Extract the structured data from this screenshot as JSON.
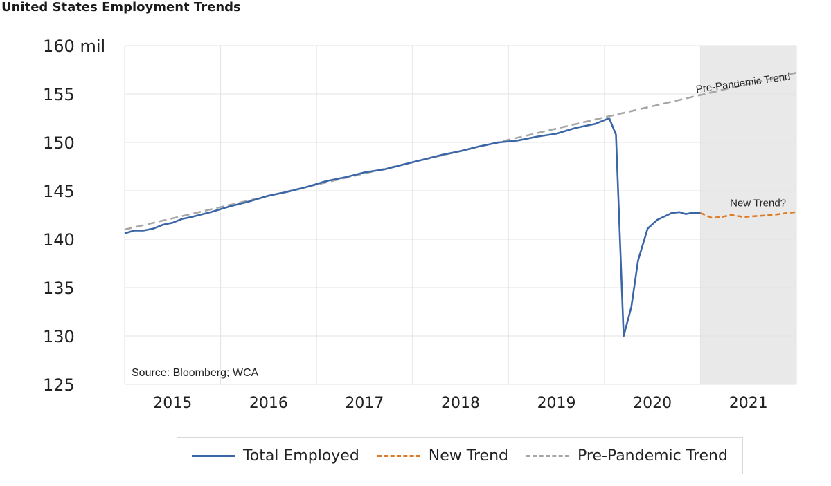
{
  "page": {
    "title": "United States Employment Trends"
  },
  "colors": {
    "total_employed": "#3a65a6",
    "new_trend": "#e07b25",
    "pre_pandemic_trend": "#a6a6a6",
    "forecast_shade": "#e9e9e9",
    "grid": "#e3e3e3"
  },
  "chart_data": {
    "type": "line",
    "title": "United States Employment Trends",
    "xlabel": "",
    "ylabel": "",
    "x_tick_labels": [
      "2015",
      "2016",
      "2017",
      "2018",
      "2019",
      "2020",
      "2021"
    ],
    "y_tick_labels": [
      "160 mil",
      "155",
      "150",
      "145",
      "140",
      "135",
      "130",
      "125"
    ],
    "y_ticks": [
      160,
      155,
      150,
      145,
      140,
      135,
      130,
      125
    ],
    "ylim": [
      125,
      160
    ],
    "xlim": [
      2014.6,
      2021.6
    ],
    "grid": true,
    "shaded_region": {
      "x_start": 2020.6,
      "x_end": 2021.6
    },
    "source_note": "Source: Bloomberg; WCA",
    "annotations": [
      {
        "text": "Pre-Pandemic Trend",
        "x": 2021.05,
        "y": 155.8
      },
      {
        "text": "New Trend?",
        "x": 2021.2,
        "y": 143.4
      }
    ],
    "legend": {
      "placement": "bottom",
      "entries": [
        "Total Employed",
        "New Trend",
        "Pre-Pandemic Trend"
      ]
    },
    "series": [
      {
        "name": "Total Employed",
        "style": "solid",
        "x": [
          2014.6,
          2014.7,
          2014.8,
          2014.9,
          2015.0,
          2015.1,
          2015.2,
          2015.3,
          2015.5,
          2015.7,
          2015.9,
          2016.1,
          2016.3,
          2016.5,
          2016.7,
          2016.9,
          2017.1,
          2017.3,
          2017.5,
          2017.7,
          2017.9,
          2018.1,
          2018.3,
          2018.5,
          2018.7,
          2018.9,
          2019.1,
          2019.3,
          2019.5,
          2019.6,
          2019.65,
          2019.72,
          2019.8,
          2019.88,
          2019.95,
          2020.05,
          2020.15,
          2020.3,
          2020.38,
          2020.45,
          2020.5,
          2020.6
        ],
        "y": [
          140.6,
          140.9,
          140.9,
          141.1,
          141.5,
          141.7,
          142.1,
          142.3,
          142.8,
          143.4,
          143.9,
          144.5,
          144.9,
          145.4,
          146.0,
          146.4,
          146.9,
          147.2,
          147.7,
          148.2,
          148.7,
          149.1,
          149.6,
          150.0,
          150.2,
          150.6,
          150.9,
          151.5,
          151.9,
          152.3,
          152.5,
          150.8,
          130.0,
          133.0,
          137.8,
          141.1,
          142.0,
          142.7,
          142.8,
          142.6,
          142.7,
          142.7
        ]
      },
      {
        "name": "New Trend",
        "style": "dashed",
        "x": [
          2020.6,
          2020.65,
          2020.72,
          2020.82,
          2020.92,
          2021.05,
          2021.2,
          2021.35,
          2021.5,
          2021.6
        ],
        "y": [
          142.7,
          142.5,
          142.2,
          142.3,
          142.5,
          142.3,
          142.4,
          142.5,
          142.7,
          142.8
        ]
      },
      {
        "name": "Pre-Pandemic Trend",
        "style": "dashed",
        "x": [
          2014.6,
          2019.65,
          2021.6
        ],
        "y": [
          141.0,
          152.7,
          157.2
        ]
      }
    ]
  }
}
